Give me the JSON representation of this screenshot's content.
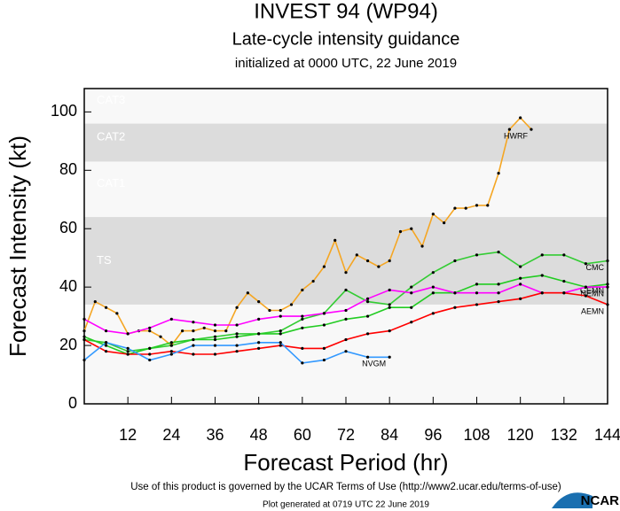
{
  "chart_data": {
    "type": "line",
    "title": "INVEST 94 (WP94)",
    "subtitle": "Late-cycle intensity guidance",
    "note": "initialized at 0000 UTC, 22 June 2019",
    "x_label": "Forecast Period (hr)",
    "y_label": "Forecast Intensity (kt)",
    "xlim": [
      0,
      144
    ],
    "ylim": [
      0,
      108
    ],
    "xticks": [
      12,
      24,
      36,
      48,
      60,
      72,
      84,
      96,
      108,
      120,
      132,
      144
    ],
    "yticks": [
      0,
      20,
      40,
      60,
      80,
      100
    ],
    "bands": [
      {
        "label": "TS",
        "range": [
          34,
          64
        ],
        "color": "#dcdcdc"
      },
      {
        "label": "CAT1",
        "range": [
          64,
          83
        ],
        "color": "#f8f8f8"
      },
      {
        "label": "CAT2",
        "range": [
          83,
          96
        ],
        "color": "#dcdcdc"
      },
      {
        "label": "CAT3",
        "range": [
          96,
          108
        ],
        "color": "#f8f8f8"
      }
    ],
    "background": "#f8f8f8",
    "series": [
      {
        "name": "HWRF",
        "color": "#f5a623",
        "x": [
          0,
          3,
          6,
          9,
          12,
          15,
          18,
          21,
          24,
          27,
          30,
          33,
          36,
          39,
          42,
          45,
          48,
          51,
          54,
          57,
          60,
          63,
          66,
          69,
          72,
          75,
          78,
          81,
          84,
          87,
          90,
          93,
          96,
          99,
          102,
          105,
          108,
          111,
          114,
          117,
          120,
          123
        ],
        "values": [
          25,
          35,
          33,
          31,
          24,
          25,
          25,
          23,
          20,
          25,
          25,
          26,
          25,
          25,
          33,
          38,
          35,
          32,
          32,
          34,
          39,
          42,
          47,
          56,
          45,
          51,
          49,
          47,
          49,
          59,
          60,
          54,
          65,
          62,
          67,
          67,
          68,
          68,
          79,
          94,
          98,
          94
        ]
      },
      {
        "name": "CMC",
        "color": "#33cc33",
        "x": [
          0,
          6,
          12,
          18,
          24,
          30,
          36,
          42,
          48,
          54,
          60,
          66,
          72,
          78,
          84,
          90,
          96,
          102,
          108,
          114,
          120,
          126,
          132,
          138,
          144
        ],
        "values": [
          22,
          21,
          18,
          19,
          20,
          22,
          23,
          24,
          24,
          25,
          29,
          31,
          39,
          35,
          34,
          40,
          45,
          49,
          51,
          52,
          47,
          51,
          51,
          48,
          49
        ]
      },
      {
        "name": "GEMN",
        "color": "#22cc22",
        "x": [
          0,
          6,
          12,
          18,
          24,
          30,
          36,
          42,
          48,
          54,
          60,
          66,
          72,
          78,
          84,
          90,
          96,
          102,
          108,
          114,
          120,
          126,
          132,
          138,
          144
        ],
        "values": [
          23,
          20,
          17,
          19,
          21,
          22,
          22,
          23,
          24,
          24,
          26,
          27,
          29,
          30,
          33,
          33,
          38,
          38,
          41,
          41,
          43,
          44,
          42,
          40,
          41
        ]
      },
      {
        "name": "NEMN",
        "color": "#ff00ff",
        "x": [
          0,
          6,
          12,
          18,
          24,
          30,
          36,
          42,
          48,
          54,
          60,
          66,
          72,
          78,
          84,
          90,
          96,
          102,
          108,
          114,
          120,
          126,
          132,
          138,
          144
        ],
        "values": [
          29,
          25,
          24,
          26,
          29,
          28,
          27,
          27,
          29,
          30,
          30,
          31,
          32,
          36,
          39,
          38,
          40,
          38,
          38,
          38,
          41,
          38,
          38,
          40,
          40
        ]
      },
      {
        "name": "AEMN",
        "color": "#ff0000",
        "x": [
          0,
          6,
          12,
          18,
          24,
          30,
          36,
          42,
          48,
          54,
          60,
          66,
          72,
          78,
          84,
          90,
          96,
          102,
          108,
          114,
          120,
          126,
          132,
          138,
          144
        ],
        "values": [
          22,
          18,
          17,
          17,
          18,
          17,
          17,
          18,
          19,
          20,
          19,
          19,
          22,
          24,
          25,
          28,
          31,
          33,
          34,
          35,
          36,
          38,
          38,
          37,
          34
        ]
      },
      {
        "name": "NVGM",
        "color": "#3399ff",
        "x": [
          0,
          6,
          12,
          18,
          24,
          30,
          36,
          42,
          48,
          54,
          60,
          66,
          72,
          78,
          84
        ],
        "values": [
          15,
          21,
          19,
          15,
          17,
          20,
          20,
          20,
          21,
          21,
          14,
          15,
          18,
          16,
          16
        ]
      }
    ],
    "footer": "Use of this product is governed by the UCAR Terms of Use (http://www2.ucar.edu/terms-of-use)",
    "generated": "Plot generated at 0719 UTC   22 June 2019",
    "logo": "NCAR"
  }
}
